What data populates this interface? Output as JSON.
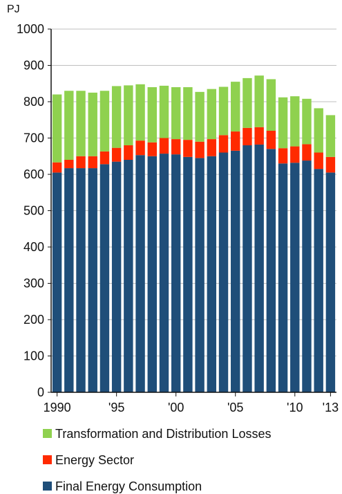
{
  "chart_data": {
    "type": "bar",
    "stacked": true,
    "ylabel": "PJ",
    "ylim": [
      0,
      1000
    ],
    "yticks": [
      0,
      100,
      200,
      300,
      400,
      500,
      600,
      700,
      800,
      900,
      1000
    ],
    "grid": true,
    "categories": [
      "1990",
      "1991",
      "1992",
      "1993",
      "1994",
      "1995",
      "1996",
      "1997",
      "1998",
      "1999",
      "2000",
      "2001",
      "2002",
      "2003",
      "2004",
      "2005",
      "2006",
      "2007",
      "2008",
      "2009",
      "2010",
      "2011",
      "2012",
      "2013"
    ],
    "x_tick_labels": [
      {
        "category": "1990",
        "label": "1990"
      },
      {
        "category": "1995",
        "label": "'95"
      },
      {
        "category": "2000",
        "label": "'00"
      },
      {
        "category": "2005",
        "label": "'05"
      },
      {
        "category": "2010",
        "label": "'10"
      },
      {
        "category": "2013",
        "label": "'13"
      }
    ],
    "series": [
      {
        "name": "Final Energy Consumption",
        "color": "#1F4E79",
        "values": [
          605,
          617,
          617,
          617,
          628,
          635,
          640,
          653,
          650,
          657,
          655,
          648,
          645,
          650,
          660,
          665,
          680,
          682,
          670,
          630,
          632,
          638,
          615,
          605
        ]
      },
      {
        "name": "Energy Sector",
        "color": "#FF2A00",
        "values": [
          28,
          23,
          33,
          33,
          35,
          38,
          40,
          40,
          38,
          43,
          42,
          47,
          45,
          47,
          48,
          53,
          48,
          48,
          50,
          42,
          45,
          45,
          45,
          43
        ]
      },
      {
        "name": "Transformation and Distribution Losses",
        "color": "#8FD14F",
        "values": [
          187,
          190,
          180,
          175,
          167,
          170,
          165,
          155,
          152,
          144,
          143,
          145,
          137,
          138,
          133,
          137,
          137,
          142,
          142,
          140,
          138,
          125,
          122,
          115
        ]
      }
    ],
    "legend": {
      "placement": "bottom",
      "order": [
        "Transformation and Distribution Losses",
        "Energy Sector",
        "Final Energy Consumption"
      ]
    },
    "colors": {
      "grid": "#BFBFBF",
      "axis": "#111111"
    }
  }
}
